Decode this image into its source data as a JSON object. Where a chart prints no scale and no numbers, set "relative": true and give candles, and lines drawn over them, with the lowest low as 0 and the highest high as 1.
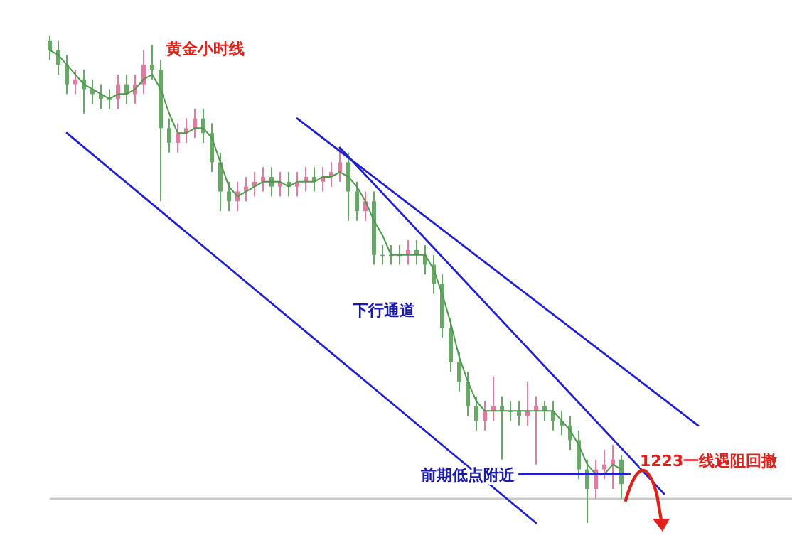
{
  "chart_data": {
    "type": "candlestick",
    "title": "黄金小时线",
    "relative": true,
    "annotations": [
      "下行通道",
      "前期低点附近",
      "1223一线遇阻回撤"
    ],
    "categories": [
      null,
      null,
      null,
      null,
      null,
      null,
      null,
      null,
      null,
      null,
      null,
      null,
      null,
      null,
      null,
      null,
      null,
      null,
      null,
      null,
      null,
      null,
      null,
      null,
      null,
      null,
      null,
      null,
      null,
      null,
      null,
      null,
      null,
      null,
      null,
      null,
      null,
      null,
      null,
      null,
      null,
      null,
      null,
      null,
      null,
      null,
      null,
      null,
      null,
      null,
      null,
      null,
      null,
      null,
      null,
      null,
      null,
      null,
      null,
      null,
      null,
      null,
      null,
      null,
      null,
      null,
      null,
      null,
      null,
      null,
      null,
      null,
      null,
      null,
      null,
      null,
      null
    ],
    "ref_lines": [
      {
        "axis": "y",
        "value": 0.05,
        "color": "#c8c8c8"
      }
    ],
    "series": [
      {
        "ohlc": [
          [
            0.99,
            1,
            0.95,
            0.97
          ],
          [
            0.97,
            0.99,
            0.92,
            0.94
          ],
          [
            0.94,
            0.96,
            0.88,
            0.9
          ],
          [
            0.9,
            0.93,
            0.88,
            0.91
          ],
          [
            0.91,
            0.93,
            0.84,
            0.89
          ],
          [
            0.89,
            0.91,
            0.86,
            0.88
          ],
          [
            0.88,
            0.9,
            0.85,
            0.87
          ],
          [
            0.87,
            0.89,
            0.85,
            0.87
          ],
          [
            0.87,
            0.92,
            0.85,
            0.9
          ],
          [
            0.9,
            0.92,
            0.86,
            0.88
          ],
          [
            0.88,
            0.92,
            0.86,
            0.9
          ],
          [
            0.9,
            0.97,
            0.88,
            0.94
          ],
          [
            0.94,
            0.98,
            0.91,
            0.93
          ],
          [
            0.93,
            0.95,
            0.66,
            0.81
          ],
          [
            0.81,
            0.83,
            0.76,
            0.78
          ],
          [
            0.78,
            0.82,
            0.76,
            0.8
          ],
          [
            0.8,
            0.83,
            0.78,
            0.81
          ],
          [
            0.81,
            0.85,
            0.79,
            0.83
          ],
          [
            0.83,
            0.85,
            0.78,
            0.8
          ],
          [
            0.8,
            0.82,
            0.72,
            0.74
          ],
          [
            0.74,
            0.76,
            0.64,
            0.68
          ],
          [
            0.68,
            0.7,
            0.64,
            0.66
          ],
          [
            0.66,
            0.7,
            0.64,
            0.68
          ],
          [
            0.68,
            0.71,
            0.66,
            0.69
          ],
          [
            0.69,
            0.72,
            0.67,
            0.7
          ],
          [
            0.7,
            0.73,
            0.68,
            0.71
          ],
          [
            0.71,
            0.73,
            0.67,
            0.69
          ],
          [
            0.69,
            0.72,
            0.67,
            0.7
          ],
          [
            0.7,
            0.72,
            0.67,
            0.69
          ],
          [
            0.69,
            0.72,
            0.67,
            0.7
          ],
          [
            0.7,
            0.73,
            0.68,
            0.71
          ],
          [
            0.71,
            0.73,
            0.68,
            0.7
          ],
          [
            0.7,
            0.73,
            0.68,
            0.71
          ],
          [
            0.71,
            0.74,
            0.69,
            0.72
          ],
          [
            0.72,
            0.77,
            0.7,
            0.74
          ],
          [
            0.74,
            0.76,
            0.62,
            0.68
          ],
          [
            0.68,
            0.7,
            0.62,
            0.64
          ],
          [
            0.64,
            0.68,
            0.62,
            0.66
          ],
          [
            0.66,
            0.68,
            0.53,
            0.55
          ],
          [
            0.55,
            0.57,
            0.53,
            0.55
          ],
          [
            0.55,
            0.57,
            0.53,
            0.55
          ],
          [
            0.55,
            0.57,
            0.53,
            0.55
          ],
          [
            0.55,
            0.58,
            0.53,
            0.56
          ],
          [
            0.56,
            0.58,
            0.53,
            0.55
          ],
          [
            0.55,
            0.57,
            0.51,
            0.53
          ],
          [
            0.53,
            0.55,
            0.47,
            0.49
          ],
          [
            0.49,
            0.51,
            0.38,
            0.4
          ],
          [
            0.4,
            0.42,
            0.31,
            0.33
          ],
          [
            0.33,
            0.35,
            0.27,
            0.29
          ],
          [
            0.29,
            0.31,
            0.22,
            0.24
          ],
          [
            0.24,
            0.26,
            0.19,
            0.21
          ],
          [
            0.21,
            0.25,
            0.19,
            0.23
          ],
          [
            0.23,
            0.3,
            0.21,
            0.24
          ],
          [
            0.24,
            0.26,
            0.13,
            0.23
          ],
          [
            0.23,
            0.25,
            0.21,
            0.23
          ],
          [
            0.23,
            0.25,
            0.2,
            0.22
          ],
          [
            0.22,
            0.29,
            0.2,
            0.23
          ],
          [
            0.23,
            0.26,
            0.12,
            0.24
          ],
          [
            0.24,
            0.25,
            0.21,
            0.23
          ],
          [
            0.23,
            0.25,
            0.19,
            0.21
          ],
          [
            0.21,
            0.23,
            0.18,
            0.2
          ],
          [
            0.2,
            0.22,
            0.15,
            0.17
          ],
          [
            0.17,
            0.19,
            0.09,
            0.11
          ],
          [
            0.11,
            0.13,
            0,
            0.07
          ],
          [
            0.07,
            0.13,
            0.05,
            0.11
          ],
          [
            0.11,
            0.15,
            0.09,
            0.12
          ],
          [
            0.12,
            0.16,
            0.07,
            0.13
          ],
          [
            0.13,
            0.14,
            0.05,
            0.08
          ],
          null,
          null,
          null,
          null,
          null,
          null,
          null,
          null,
          null
        ],
        "colors": [
          "#6aa86a",
          "#6aa86a",
          "#6aa86a",
          "#e07a9e",
          "#6aa86a",
          "#6aa86a",
          "#6aa86a",
          "#6aa86a",
          "#e07a9e",
          "#6aa86a",
          "#e07a9e",
          "#e07a9e",
          "#6aa86a",
          "#6aa86a",
          "#6aa86a",
          "#e07a9e",
          "#e07a9e",
          "#e07a9e",
          "#6aa86a",
          "#6aa86a",
          "#6aa86a",
          "#6aa86a",
          "#e07a9e",
          "#e07a9e",
          "#e07a9e",
          "#e07a9e",
          "#6aa86a",
          "#e07a9e",
          "#6aa86a",
          "#e07a9e",
          "#e07a9e",
          "#6aa86a",
          "#e07a9e",
          "#e07a9e",
          "#e07a9e",
          "#6aa86a",
          "#6aa86a",
          "#e07a9e",
          "#6aa86a",
          "#6aa86a",
          "#6aa86a",
          "#6aa86a",
          "#e07a9e",
          "#6aa86a",
          "#6aa86a",
          "#6aa86a",
          "#6aa86a",
          "#6aa86a",
          "#6aa86a",
          "#6aa86a",
          "#6aa86a",
          "#e07a9e",
          "#e07a9e",
          "#6aa86a",
          "#6aa86a",
          "#6aa86a",
          "#e07a9e",
          "#e07a9e",
          "#6aa86a",
          "#6aa86a",
          "#6aa86a",
          "#6aa86a",
          "#6aa86a",
          "#6aa86a",
          "#e07a9e",
          "#e07a9e",
          "#e07a9e",
          "#6aa86a",
          null,
          null,
          null,
          null,
          null,
          null,
          null,
          null,
          null
        ]
      },
      {
        "type": "line",
        "color": "#4a9a4a",
        "values": [
          0.97,
          0.96,
          0.94,
          0.92,
          0.9,
          0.89,
          0.88,
          0.87,
          0.88,
          0.88,
          0.89,
          0.91,
          0.92,
          0.89,
          0.84,
          0.8,
          0.8,
          0.81,
          0.81,
          0.79,
          0.74,
          0.69,
          0.67,
          0.68,
          0.69,
          0.7,
          0.7,
          0.7,
          0.69,
          0.7,
          0.7,
          0.7,
          0.71,
          0.71,
          0.72,
          0.71,
          0.69,
          0.66,
          0.62,
          0.59,
          0.55,
          0.55,
          0.55,
          0.55,
          0.55,
          0.52,
          0.47,
          0.41,
          0.34,
          0.29,
          0.25,
          0.23,
          0.23,
          0.23,
          0.23,
          0.23,
          0.23,
          0.23,
          0.23,
          0.23,
          0.21,
          0.19,
          0.16,
          0.12,
          0.1,
          0.1,
          0.12,
          0.11,
          null,
          null,
          null,
          null,
          null,
          null,
          null,
          null,
          null
        ]
      },
      {
        "type": "line",
        "color": "#2020d0",
        "values": [
          null,
          null,
          0.8,
          null,
          null,
          null,
          null,
          null,
          null,
          null,
          null,
          null,
          null,
          null,
          null,
          null,
          null,
          null,
          null,
          null,
          null,
          null,
          null,
          null,
          null,
          null,
          null,
          null,
          null,
          null,
          null,
          null,
          null,
          null,
          null,
          null,
          null,
          null,
          null,
          null,
          null,
          null,
          null,
          null,
          null,
          null,
          null,
          null,
          null,
          null,
          null,
          null,
          null,
          null,
          null,
          null,
          null,
          0,
          null,
          null,
          null,
          null,
          null,
          null,
          null,
          null,
          null,
          null,
          null,
          null,
          null,
          null,
          null,
          null,
          null,
          null,
          null
        ]
      },
      {
        "type": "line",
        "color": "#2020d0",
        "values": [
          null,
          null,
          null,
          null,
          null,
          null,
          null,
          null,
          null,
          null,
          null,
          null,
          null,
          null,
          null,
          null,
          null,
          null,
          null,
          null,
          null,
          null,
          null,
          null,
          null,
          null,
          null,
          null,
          null,
          0.83,
          null,
          null,
          null,
          null,
          null,
          null,
          null,
          null,
          null,
          null,
          null,
          null,
          null,
          null,
          null,
          null,
          null,
          null,
          null,
          null,
          null,
          null,
          null,
          null,
          null,
          null,
          null,
          null,
          null,
          null,
          null,
          null,
          null,
          null,
          null,
          null,
          null,
          null,
          null,
          null,
          null,
          null,
          null,
          null,
          null,
          null,
          0.2
        ]
      },
      {
        "type": "line",
        "color": "#2020d0",
        "values": [
          null,
          null,
          null,
          null,
          null,
          null,
          null,
          null,
          null,
          null,
          null,
          null,
          null,
          null,
          null,
          null,
          null,
          null,
          null,
          null,
          null,
          null,
          null,
          null,
          null,
          null,
          null,
          null,
          null,
          null,
          null,
          null,
          null,
          null,
          0.77,
          null,
          null,
          null,
          null,
          null,
          null,
          null,
          null,
          null,
          null,
          null,
          null,
          null,
          null,
          null,
          null,
          null,
          null,
          null,
          null,
          null,
          null,
          null,
          null,
          null,
          null,
          null,
          null,
          null,
          null,
          null,
          null,
          null,
          null,
          null,
          null,
          null,
          0.06,
          null,
          null,
          null,
          null
        ]
      },
      {
        "type": "line",
        "color": "#2020d0",
        "values": [
          null,
          null,
          null,
          null,
          null,
          null,
          null,
          null,
          null,
          null,
          null,
          null,
          null,
          null,
          null,
          null,
          null,
          null,
          null,
          null,
          null,
          null,
          null,
          null,
          null,
          null,
          null,
          null,
          null,
          null,
          null,
          null,
          null,
          null,
          null,
          null,
          null,
          null,
          null,
          null,
          null,
          null,
          null,
          null,
          null,
          null,
          null,
          null,
          null,
          null,
          null,
          null,
          null,
          null,
          null,
          0.1,
          null,
          null,
          null,
          null,
          null,
          null,
          null,
          null,
          null,
          null,
          null,
          null,
          0.1,
          null,
          null,
          null,
          null,
          null,
          null,
          null,
          null
        ]
      }
    ]
  }
}
